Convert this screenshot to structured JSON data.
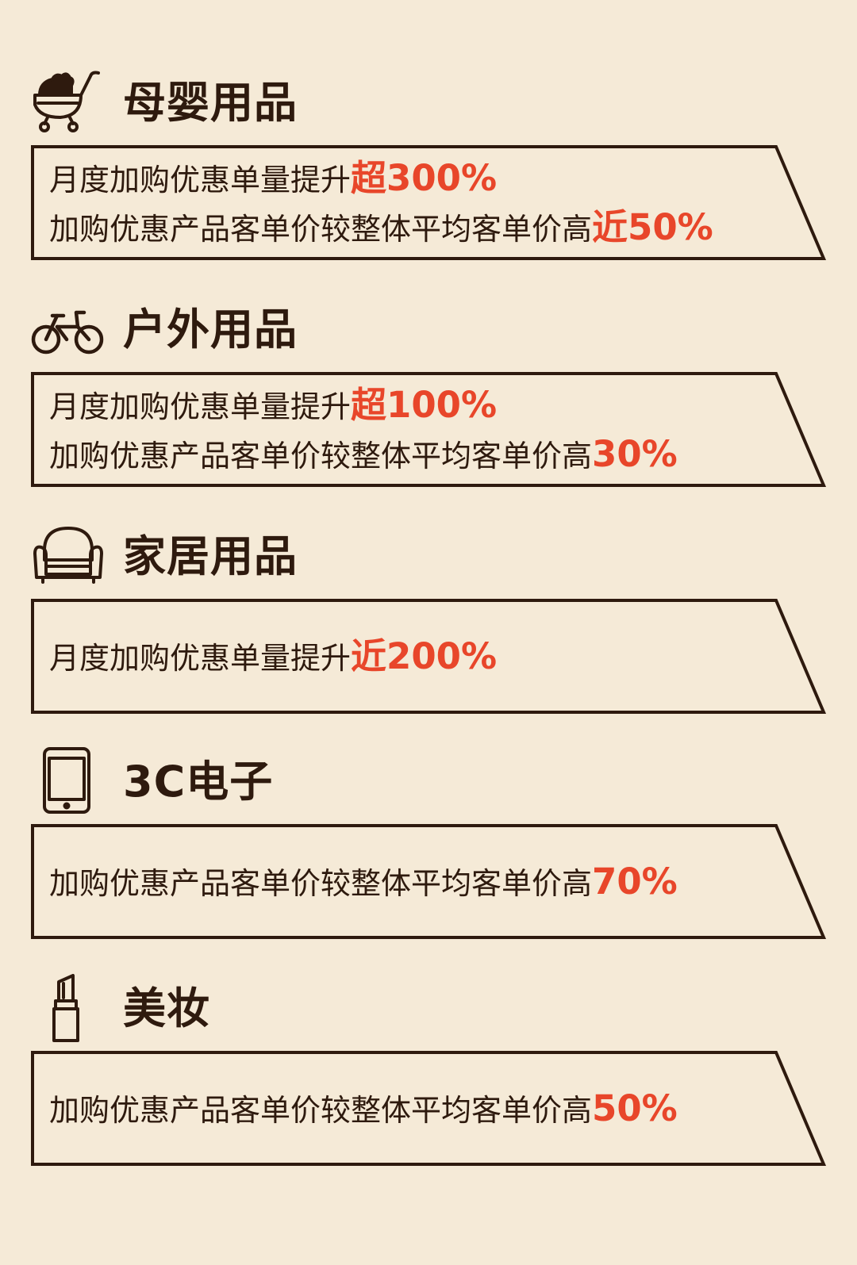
{
  "colors": {
    "background": "#f5ead7",
    "text": "#2e1a0e",
    "highlight": "#e8462a"
  },
  "sections": [
    {
      "title": "母婴用品",
      "icon": "baby-stroller-icon",
      "lines": [
        {
          "text": "月度加购优惠单量提升",
          "highlight": "超300%"
        },
        {
          "text": "加购优惠产品客单价较整体平均客单价高",
          "highlight": "近50%"
        }
      ]
    },
    {
      "title": "户外用品",
      "icon": "bicycle-icon",
      "lines": [
        {
          "text": "月度加购优惠单量提升",
          "highlight": "超100%"
        },
        {
          "text": "加购优惠产品客单价较整体平均客单价高",
          "highlight": "30%"
        }
      ]
    },
    {
      "title": "家居用品",
      "icon": "armchair-icon",
      "lines": [
        {
          "text": "月度加购优惠单量提升",
          "highlight": "近200%"
        }
      ]
    },
    {
      "title": "3C电子",
      "icon": "tablet-icon",
      "lines": [
        {
          "text": "加购优惠产品客单价较整体平均客单价高",
          "highlight": "70%"
        }
      ]
    },
    {
      "title": "美妆",
      "icon": "lipstick-icon",
      "lines": [
        {
          "text": "加购优惠产品客单价较整体平均客单价高",
          "highlight": "50%"
        }
      ]
    }
  ]
}
